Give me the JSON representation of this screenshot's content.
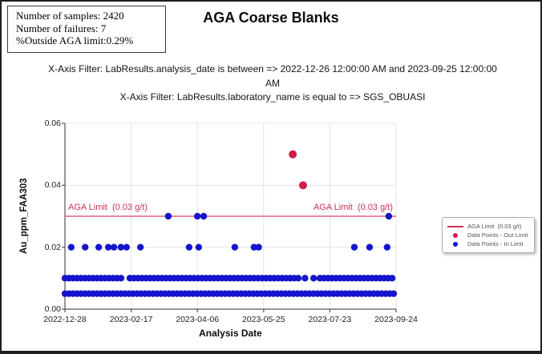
{
  "stats_box": {
    "line1": "Number of samples: 2420",
    "line2": "Number of failures: 7",
    "line3": "%Outside AGA limit:0.29%"
  },
  "title": "AGA Coarse Blanks",
  "filters": {
    "line1": "X-Axis Filter: LabResults.analysis_date is between => 2022-12-26 12:00:00 AM and 2023-09-25 12:00:00 AM",
    "line2": "X-Axis Filter: LabResults.laboratory_name is equal to => SGS_OBUASI"
  },
  "legend": {
    "items": [
      {
        "label": "AGA Limit  (0.03 g/t)",
        "swatch": "line",
        "color": "#c73352"
      },
      {
        "label": "Data Points - Out Limit",
        "swatch": "dot",
        "color": "#d01f47"
      },
      {
        "label": "Data Points - In Limit",
        "swatch": "dot",
        "color": "#1414cc"
      }
    ]
  },
  "chart_data": {
    "type": "scatter",
    "title": "AGA Coarse Blanks",
    "xlabel": "Analysis Date",
    "ylabel": "Au_ppm_FAA303",
    "ylim": [
      0,
      0.06
    ],
    "y_ticks": [
      "0.06",
      "0.04",
      "0.02",
      "0.00"
    ],
    "x_ticks": [
      "2022-12-28",
      "2023-02-17",
      "2023-04-06",
      "2023-05-25",
      "2023-07-23",
      "2023-09-24"
    ],
    "x_range": [
      "2022-12-26",
      "2023-09-25"
    ],
    "x_unit": "fraction of x-axis from 2022-12-26 (0) to 2023-09-25 (1)",
    "grid": true,
    "legend_position": "right",
    "limit_line": {
      "y": 0.03,
      "color": "#e06080",
      "label_left": "AGA Limit  (0.03 g/t)",
      "label_right": "AGA Limit  (0.03 g/t)"
    },
    "series": [
      {
        "name": "Data Points - Out Limit",
        "color": "#d01f47",
        "points": [
          {
            "x": 0.688,
            "y": 0.05
          },
          {
            "x": 0.719,
            "y": 0.04
          }
        ]
      },
      {
        "name": "Data Points - In Limit",
        "color": "#1414cc",
        "points": [
          {
            "x": 0.312,
            "y": 0.03
          },
          {
            "x": 0.4,
            "y": 0.03
          },
          {
            "x": 0.419,
            "y": 0.03
          },
          {
            "x": 0.978,
            "y": 0.03
          },
          {
            "x": 0.019,
            "y": 0.02
          },
          {
            "x": 0.061,
            "y": 0.02
          },
          {
            "x": 0.102,
            "y": 0.02
          },
          {
            "x": 0.131,
            "y": 0.02
          },
          {
            "x": 0.148,
            "y": 0.02
          },
          {
            "x": 0.169,
            "y": 0.02
          },
          {
            "x": 0.186,
            "y": 0.02
          },
          {
            "x": 0.228,
            "y": 0.02
          },
          {
            "x": 0.375,
            "y": 0.02
          },
          {
            "x": 0.404,
            "y": 0.02
          },
          {
            "x": 0.513,
            "y": 0.02
          },
          {
            "x": 0.571,
            "y": 0.02
          },
          {
            "x": 0.585,
            "y": 0.02
          },
          {
            "x": 0.874,
            "y": 0.02
          },
          {
            "x": 0.92,
            "y": 0.02
          },
          {
            "x": 0.973,
            "y": 0.02
          }
        ],
        "dense_rows": [
          {
            "y": 0.01,
            "segments": [
              [
                0.0,
                0.179
              ],
              [
                0.196,
                0.305
              ],
              [
                0.317,
                0.511
              ],
              [
                0.523,
                0.714
              ],
              [
                0.725,
                0.727
              ],
              [
                0.751,
                0.753
              ],
              [
                0.77,
                0.833
              ],
              [
                0.843,
                1.0
              ]
            ]
          },
          {
            "y": 0.005,
            "segments": [
              [
                0.0,
                1.0
              ]
            ]
          }
        ]
      }
    ]
  }
}
